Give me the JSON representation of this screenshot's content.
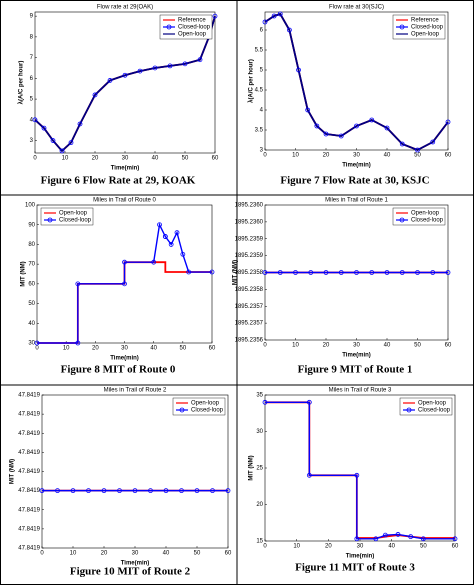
{
  "chart_data": [
    {
      "type": "line",
      "title": "Flow rate at 29(OAK)",
      "x_label": "Time(min)",
      "y_label": "λ(A/C per hour)",
      "caption": "Figure 6 Flow Rate at 29, KOAK",
      "x": [
        0,
        3,
        6,
        9,
        12,
        15,
        20,
        25,
        30,
        35,
        40,
        45,
        50,
        55,
        58,
        60
      ],
      "series": [
        {
          "name": "Reference",
          "color": "#ff0000",
          "values": [
            4,
            3.6,
            3.0,
            2.5,
            2.9,
            3.8,
            5.2,
            5.9,
            6.15,
            6.35,
            6.5,
            6.6,
            6.7,
            6.9,
            8.0,
            9.0
          ]
        },
        {
          "name": "Closed-loop",
          "color": "#0000ff",
          "marker": "o",
          "values": [
            4,
            3.6,
            3.0,
            2.5,
            2.9,
            3.8,
            5.2,
            5.9,
            6.15,
            6.35,
            6.5,
            6.6,
            6.7,
            6.9,
            8.0,
            9.0
          ]
        },
        {
          "name": "Open-loop",
          "color": "#000080",
          "values": [
            4,
            3.6,
            3.0,
            2.5,
            2.9,
            3.8,
            5.2,
            5.9,
            6.15,
            6.35,
            6.5,
            6.6,
            6.7,
            6.9,
            8.0,
            9.0
          ]
        }
      ],
      "xlim": [
        0,
        60
      ],
      "xticks": [
        0,
        10,
        20,
        30,
        40,
        50,
        60
      ],
      "ylim": [
        2.4,
        9.2
      ],
      "yticks": [
        3,
        4,
        5,
        6,
        7,
        8,
        9
      ],
      "legend": "upper right"
    },
    {
      "type": "line",
      "title": "Flow rate at 30(SJC)",
      "x_label": "Time(min)",
      "y_label": "λ(A/C per hour)",
      "caption": "Figure 7 Flow Rate at 30, KSJC",
      "x": [
        0,
        3,
        5,
        8,
        11,
        14,
        17,
        20,
        25,
        30,
        35,
        40,
        45,
        50,
        55,
        60
      ],
      "series": [
        {
          "name": "Reference",
          "color": "#ff0000",
          "values": [
            6.2,
            6.35,
            6.4,
            6.0,
            5.0,
            4.0,
            3.6,
            3.4,
            3.35,
            3.6,
            3.75,
            3.55,
            3.15,
            3.0,
            3.2,
            3.7
          ]
        },
        {
          "name": "Closed-loop",
          "color": "#0000ff",
          "marker": "o",
          "values": [
            6.2,
            6.35,
            6.4,
            6.0,
            5.0,
            4.0,
            3.6,
            3.4,
            3.35,
            3.6,
            3.75,
            3.55,
            3.15,
            3.0,
            3.2,
            3.7
          ]
        },
        {
          "name": "Open-loop",
          "color": "#000080",
          "values": [
            6.2,
            6.35,
            6.4,
            6.0,
            5.0,
            4.0,
            3.6,
            3.4,
            3.35,
            3.6,
            3.75,
            3.55,
            3.15,
            3.0,
            3.2,
            3.7
          ]
        }
      ],
      "xlim": [
        0,
        60
      ],
      "xticks": [
        0,
        10,
        20,
        30,
        40,
        50,
        60
      ],
      "ylim": [
        3,
        6.45
      ],
      "yticks": [
        3,
        3.5,
        4,
        4.5,
        5,
        5.5,
        6
      ],
      "legend": "upper right"
    },
    {
      "type": "line",
      "title": "Miles in Trail of Route 0",
      "x_label": "Time(min)",
      "y_label": "MIT (NM)",
      "caption": "Figure 8 MIT of Route 0",
      "x": [
        0,
        14,
        14,
        30,
        30,
        40,
        42,
        44,
        44,
        46,
        48,
        50,
        52,
        60
      ],
      "series": [
        {
          "name": "Open-loop",
          "color": "#ff0000",
          "values": [
            30,
            30,
            60,
            60,
            71,
            71,
            71,
            71,
            66,
            66,
            66,
            66,
            66,
            66
          ]
        },
        {
          "name": "Closed-loop",
          "color": "#0000ff",
          "marker": "o",
          "values": [
            30,
            30,
            60,
            60,
            71,
            71,
            90,
            84,
            84,
            80,
            86,
            75,
            66,
            66
          ]
        }
      ],
      "xlim": [
        0,
        60
      ],
      "xticks": [
        0,
        10,
        20,
        30,
        40,
        50,
        60
      ],
      "ylim": [
        30,
        100
      ],
      "yticks": [
        30,
        40,
        50,
        60,
        70,
        80,
        90,
        100
      ],
      "legend": "upper left"
    },
    {
      "type": "line",
      "title": "Miles in Trail of Route 1",
      "x_label": "Time(min)",
      "y_label": "MIT (NM)",
      "caption": "Figure 9 MIT of Route 1",
      "x": [
        0,
        5,
        10,
        15,
        20,
        25,
        30,
        35,
        40,
        45,
        50,
        55,
        60
      ],
      "series": [
        {
          "name": "Open-loop",
          "color": "#ff0000",
          "values": [
            1895.2358,
            1895.2358,
            1895.2358,
            1895.2358,
            1895.2358,
            1895.2358,
            1895.2358,
            1895.2358,
            1895.2358,
            1895.2358,
            1895.2358,
            1895.2358,
            1895.2358
          ]
        },
        {
          "name": "Closed-loop",
          "color": "#0000ff",
          "marker": "o",
          "values": [
            1895.2358,
            1895.2358,
            1895.2358,
            1895.2358,
            1895.2358,
            1895.2358,
            1895.2358,
            1895.2358,
            1895.2358,
            1895.2358,
            1895.2358,
            1895.2358,
            1895.2358
          ]
        }
      ],
      "xlim": [
        0,
        60
      ],
      "xticks": [
        0,
        10,
        20,
        30,
        40,
        50,
        60
      ],
      "ylim": [
        1895.2356,
        1895.236
      ],
      "yticks": [
        {
          "value": 1895.2356,
          "label": "1895.2356"
        },
        {
          "value": 1895.23565,
          "label": "1895.2357"
        },
        {
          "value": 1895.2357,
          "label": "1895.2357"
        },
        {
          "value": 1895.23575,
          "label": "1895.2358"
        },
        {
          "value": 1895.2358,
          "label": "1895.2358"
        },
        {
          "value": 1895.23585,
          "label": "1895.2359"
        },
        {
          "value": 1895.2359,
          "label": "1895.2359"
        },
        {
          "value": 1895.23595,
          "label": "1895.2360"
        },
        {
          "value": 1895.236,
          "label": "1895.2360"
        }
      ],
      "legend": "upper right"
    },
    {
      "type": "line",
      "title": "Miles in Trail of Route 2",
      "x_label": "Time(min)",
      "y_label": "MIT (NM)",
      "caption": "Figure 10 MIT of Route 2",
      "x": [
        0,
        5,
        10,
        15,
        20,
        25,
        30,
        35,
        40,
        45,
        50,
        55,
        60
      ],
      "series": [
        {
          "name": "Open-loop",
          "color": "#ff0000",
          "values": [
            47.84189,
            47.84189,
            47.84189,
            47.84189,
            47.84189,
            47.84189,
            47.84189,
            47.84189,
            47.84189,
            47.84189,
            47.84189,
            47.84189,
            47.84189
          ]
        },
        {
          "name": "Closed-loop",
          "color": "#0000ff",
          "marker": "o",
          "values": [
            47.84189,
            47.84189,
            47.84189,
            47.84189,
            47.84189,
            47.84189,
            47.84189,
            47.84189,
            47.84189,
            47.84189,
            47.84189,
            47.84189,
            47.84189
          ]
        }
      ],
      "xlim": [
        0,
        60
      ],
      "xticks": [
        0,
        10,
        20,
        30,
        40,
        50,
        60
      ],
      "ylim": [
        47.84186,
        47.84194
      ],
      "yticks": [
        {
          "value": 47.84186,
          "label": "47.8419"
        },
        {
          "value": 47.84187,
          "label": "47.8419"
        },
        {
          "value": 47.84188,
          "label": "47.8419"
        },
        {
          "value": 47.84189,
          "label": "47.8419"
        },
        {
          "value": 47.8419,
          "label": "47.8419"
        },
        {
          "value": 47.84191,
          "label": "47.8419"
        },
        {
          "value": 47.84192,
          "label": "47.8419"
        },
        {
          "value": 47.84193,
          "label": "47.8419"
        },
        {
          "value": 47.84194,
          "label": "47.8419"
        }
      ],
      "legend": "upper right"
    },
    {
      "type": "line",
      "title": "Miles in Trail of Route 3",
      "x_label": "Time(min)",
      "y_label": "MIT (NM)",
      "caption": "Figure 11 MIT of Route 3",
      "x": [
        0,
        14,
        14,
        29,
        29,
        35,
        38,
        42,
        46,
        50,
        60
      ],
      "series": [
        {
          "name": "Open-loop",
          "color": "#ff0000",
          "values": [
            34,
            34,
            24,
            24,
            15.4,
            15.4,
            15.6,
            15.8,
            15.6,
            15.4,
            15.4
          ]
        },
        {
          "name": "Closed-loop",
          "color": "#0000ff",
          "marker": "o",
          "values": [
            34,
            34,
            24,
            24,
            15.3,
            15.3,
            15.8,
            15.9,
            15.6,
            15.3,
            15.3
          ]
        }
      ],
      "xlim": [
        0,
        60
      ],
      "xticks": [
        0,
        10,
        20,
        30,
        40,
        50,
        60
      ],
      "ylim": [
        15,
        35
      ],
      "yticks": [
        15,
        20,
        25,
        30,
        35
      ],
      "legend": "upper right"
    }
  ]
}
